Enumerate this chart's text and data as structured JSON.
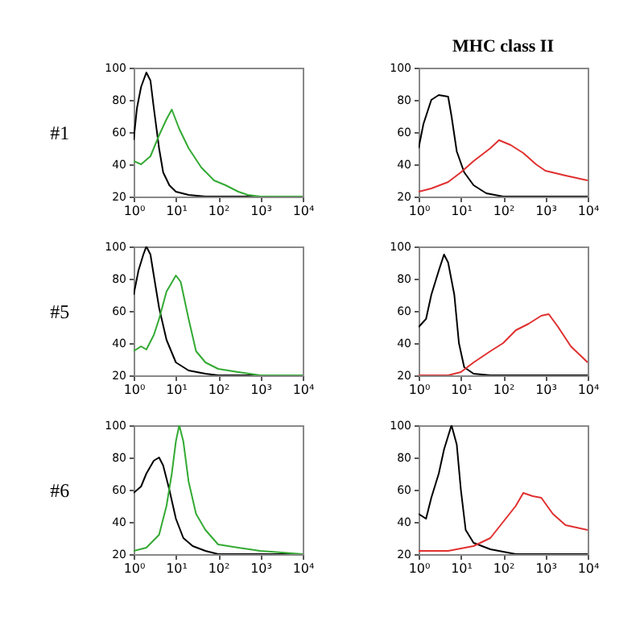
{
  "chart_data": [
    {
      "type": "line",
      "ylabel": "#1",
      "log": "x",
      "grid": false,
      "xlim": [
        1,
        10000
      ],
      "ylim": [
        20,
        100
      ],
      "xticks": [
        {
          "value": 1,
          "label": "10⁰"
        },
        {
          "value": 10,
          "label": "10¹"
        },
        {
          "value": 100,
          "label": "10²"
        },
        {
          "value": 1000,
          "label": "10³"
        },
        {
          "value": 10000,
          "label": "10⁴"
        }
      ],
      "yticks": [
        20,
        40,
        60,
        80,
        100
      ],
      "series": [
        {
          "color": "#000000",
          "x": [
            1,
            1.2,
            1.5,
            2,
            2.5,
            3,
            4,
            5,
            7,
            10,
            20,
            50,
            100,
            1000,
            10000
          ],
          "values": [
            55,
            75,
            88,
            97,
            92,
            75,
            50,
            35,
            27,
            23,
            21,
            20,
            20,
            20,
            20
          ]
        },
        {
          "color": "#33aa33",
          "x": [
            1,
            1.5,
            2.5,
            4,
            6,
            8,
            12,
            20,
            40,
            80,
            150,
            300,
            500,
            1000,
            10000
          ],
          "values": [
            42,
            40,
            45,
            58,
            68,
            74,
            62,
            50,
            38,
            30,
            27,
            23,
            21,
            20,
            20
          ]
        }
      ]
    },
    {
      "type": "line",
      "title": "MHC class II",
      "log": "x",
      "grid": false,
      "xlim": [
        1,
        10000
      ],
      "ylim": [
        20,
        100
      ],
      "xticks": [
        {
          "value": 1,
          "label": "10⁰"
        },
        {
          "value": 10,
          "label": "10¹"
        },
        {
          "value": 100,
          "label": "10²"
        },
        {
          "value": 1000,
          "label": "10³"
        },
        {
          "value": 10000,
          "label": "10⁴"
        }
      ],
      "yticks": [
        20,
        40,
        60,
        80,
        100
      ],
      "series": [
        {
          "color": "#000000",
          "x": [
            1,
            1.3,
            2,
            3,
            5,
            6,
            8,
            12,
            20,
            40,
            100,
            10000
          ],
          "values": [
            50,
            65,
            80,
            83,
            82,
            70,
            48,
            35,
            27,
            22,
            20,
            20
          ]
        },
        {
          "color": "#e03030",
          "x": [
            1,
            2,
            5,
            10,
            20,
            50,
            80,
            150,
            300,
            600,
            1000,
            3000,
            10000
          ],
          "values": [
            23,
            25,
            29,
            35,
            42,
            50,
            55,
            52,
            47,
            40,
            36,
            33,
            30
          ]
        }
      ]
    },
    {
      "type": "line",
      "ylabel": "#5",
      "log": "x",
      "grid": false,
      "xlim": [
        1,
        10000
      ],
      "ylim": [
        20,
        100
      ],
      "xticks": [
        {
          "value": 1,
          "label": "10⁰"
        },
        {
          "value": 10,
          "label": "10¹"
        },
        {
          "value": 100,
          "label": "10²"
        },
        {
          "value": 1000,
          "label": "10³"
        },
        {
          "value": 10000,
          "label": "10⁴"
        }
      ],
      "yticks": [
        20,
        40,
        60,
        80,
        100
      ],
      "series": [
        {
          "color": "#000000",
          "x": [
            1,
            1.3,
            1.7,
            2,
            2.5,
            3,
            4,
            6,
            10,
            20,
            50,
            100,
            10000
          ],
          "values": [
            70,
            85,
            95,
            100,
            95,
            82,
            62,
            42,
            28,
            23,
            21,
            20,
            20
          ]
        },
        {
          "color": "#33aa33",
          "x": [
            1,
            1.5,
            2,
            3,
            4,
            6,
            10,
            13,
            20,
            30,
            50,
            100,
            300,
            1000,
            10000
          ],
          "values": [
            35,
            38,
            36,
            45,
            55,
            72,
            82,
            78,
            55,
            35,
            28,
            24,
            22,
            20,
            20
          ]
        }
      ]
    },
    {
      "type": "line",
      "log": "x",
      "grid": false,
      "xlim": [
        1,
        10000
      ],
      "ylim": [
        20,
        100
      ],
      "xticks": [
        {
          "value": 1,
          "label": "10⁰"
        },
        {
          "value": 10,
          "label": "10¹"
        },
        {
          "value": 100,
          "label": "10²"
        },
        {
          "value": 1000,
          "label": "10³"
        },
        {
          "value": 10000,
          "label": "10⁴"
        }
      ],
      "yticks": [
        20,
        40,
        60,
        80,
        100
      ],
      "series": [
        {
          "color": "#000000",
          "x": [
            1,
            1.5,
            2,
            3,
            4,
            5,
            7,
            9,
            12,
            20,
            50,
            10000
          ],
          "values": [
            50,
            55,
            70,
            85,
            95,
            90,
            70,
            40,
            25,
            21,
            20,
            20
          ]
        },
        {
          "color": "#e03030",
          "x": [
            1,
            5,
            10,
            20,
            50,
            100,
            200,
            400,
            800,
            1200,
            2000,
            4000,
            10000
          ],
          "values": [
            20,
            20,
            22,
            28,
            35,
            40,
            48,
            52,
            57,
            58,
            50,
            38,
            28
          ]
        }
      ]
    },
    {
      "type": "line",
      "ylabel": "#6",
      "log": "x",
      "grid": false,
      "xlim": [
        1,
        10000
      ],
      "ylim": [
        20,
        100
      ],
      "xticks": [
        {
          "value": 1,
          "label": "10⁰"
        },
        {
          "value": 10,
          "label": "10¹"
        },
        {
          "value": 100,
          "label": "10²"
        },
        {
          "value": 1000,
          "label": "10³"
        },
        {
          "value": 10000,
          "label": "10⁴"
        }
      ],
      "yticks": [
        20,
        40,
        60,
        80,
        100
      ],
      "series": [
        {
          "color": "#000000",
          "x": [
            1,
            1.5,
            2,
            3,
            4,
            5,
            7,
            10,
            15,
            25,
            50,
            100,
            10000
          ],
          "values": [
            58,
            62,
            70,
            78,
            80,
            75,
            60,
            42,
            30,
            25,
            22,
            20,
            20
          ]
        },
        {
          "color": "#33aa33",
          "x": [
            1,
            2,
            4,
            6,
            8,
            10,
            12,
            15,
            20,
            30,
            50,
            100,
            300,
            1000,
            10000
          ],
          "values": [
            22,
            24,
            32,
            50,
            70,
            90,
            100,
            90,
            65,
            45,
            35,
            26,
            24,
            22,
            20
          ]
        }
      ]
    },
    {
      "type": "line",
      "log": "x",
      "grid": false,
      "xlim": [
        1,
        10000
      ],
      "ylim": [
        20,
        100
      ],
      "xticks": [
        {
          "value": 1,
          "label": "10⁰"
        },
        {
          "value": 10,
          "label": "10¹"
        },
        {
          "value": 100,
          "label": "10²"
        },
        {
          "value": 1000,
          "label": "10³"
        },
        {
          "value": 10000,
          "label": "10⁴"
        }
      ],
      "yticks": [
        20,
        40,
        60,
        80,
        100
      ],
      "series": [
        {
          "color": "#000000",
          "x": [
            1,
            1.5,
            2,
            3,
            4,
            6,
            8,
            10,
            13,
            20,
            50,
            200,
            10000
          ],
          "values": [
            45,
            42,
            55,
            70,
            85,
            100,
            88,
            60,
            35,
            27,
            23,
            20,
            20
          ]
        },
        {
          "color": "#e03030",
          "x": [
            1,
            5,
            20,
            50,
            100,
            200,
            300,
            500,
            800,
            1500,
            3000,
            10000
          ],
          "values": [
            22,
            22,
            25,
            30,
            40,
            50,
            58,
            56,
            55,
            45,
            38,
            35
          ]
        }
      ]
    }
  ]
}
